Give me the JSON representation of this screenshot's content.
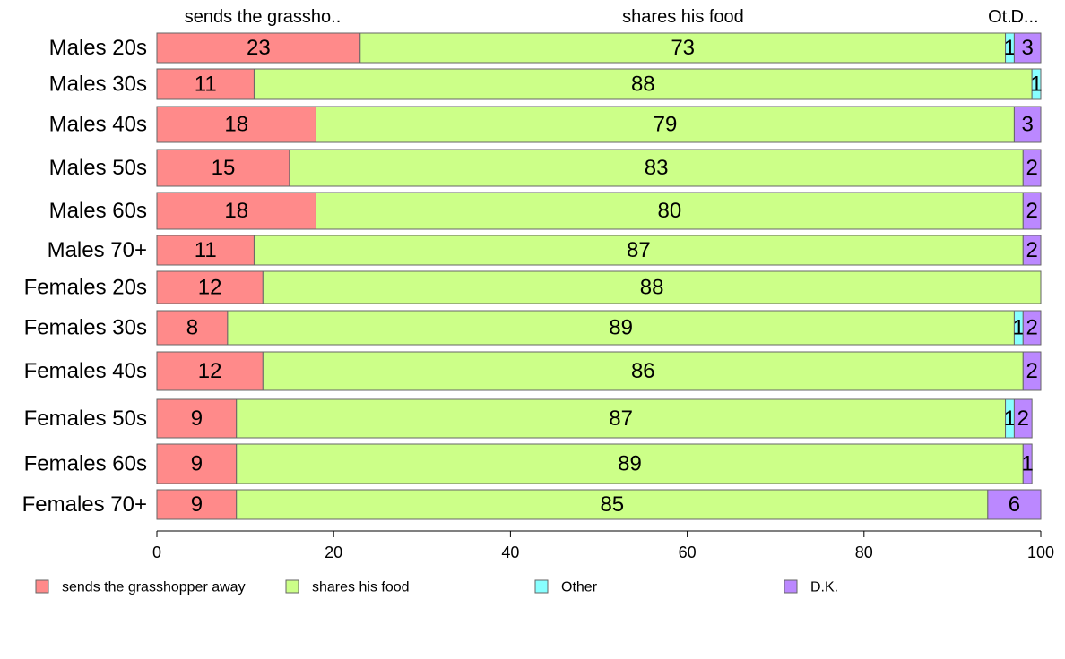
{
  "chart_data": {
    "type": "bar",
    "orientation": "horizontal",
    "stacked": true,
    "categories": [
      "Males 20s",
      "Males 30s",
      "Males 40s",
      "Males 50s",
      "Males 60s",
      "Males 70+",
      "Females 20s",
      "Females 30s",
      "Females 40s",
      "Females 50s",
      "Females 60s",
      "Females 70+"
    ],
    "series": [
      {
        "name": "sends the grasshopper away",
        "color": "#ff8a8a",
        "values": [
          23,
          11,
          18,
          15,
          18,
          11,
          12,
          8,
          12,
          9,
          9,
          9
        ]
      },
      {
        "name": "shares his food",
        "color": "#ccff88",
        "values": [
          73,
          88,
          79,
          83,
          80,
          87,
          88,
          89,
          86,
          87,
          89,
          85
        ]
      },
      {
        "name": "Other",
        "color": "#88ffff",
        "values": [
          1,
          1,
          0,
          0,
          0,
          0,
          0,
          1,
          0,
          1,
          0,
          0
        ]
      },
      {
        "name": "D.K.",
        "color": "#bb88ff",
        "values": [
          3,
          0,
          3,
          2,
          2,
          2,
          0,
          2,
          2,
          2,
          1,
          6
        ]
      }
    ],
    "top_labels": [
      "sends the grassho..",
      "shares his food",
      "Ot...",
      "D..."
    ],
    "xlim": [
      0,
      100
    ],
    "xticks": [
      0,
      20,
      40,
      60,
      80,
      100
    ],
    "grid": false,
    "legend_position": "bottom"
  }
}
